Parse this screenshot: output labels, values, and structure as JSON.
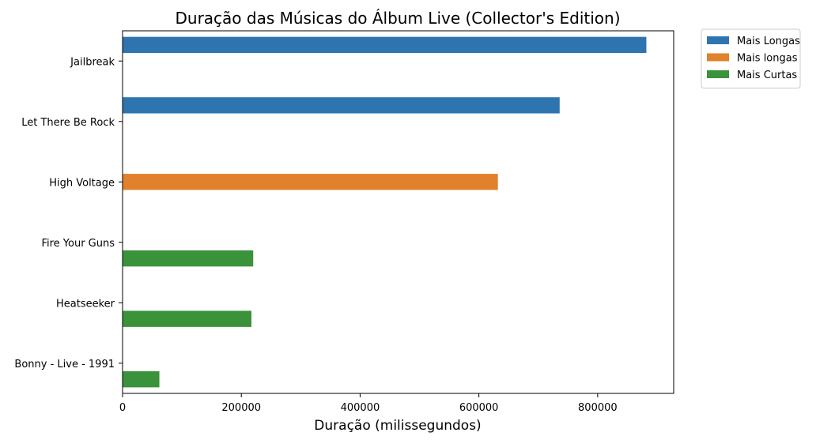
{
  "chart_data": {
    "type": "bar",
    "orientation": "horizontal",
    "title": "Duração das Músicas do Álbum Live (Collector's Edition)",
    "xlabel": "Duração (milissegundos)",
    "ylabel": "",
    "xlim": [
      0,
      928000
    ],
    "xticks": [
      0,
      200000,
      400000,
      600000,
      800000
    ],
    "xtick_labels": [
      "0",
      "200000",
      "400000",
      "600000",
      "800000"
    ],
    "categories": [
      "Jailbreak",
      "Let There Be Rock",
      "High Voltage",
      "Fire Your Guns",
      "Heatseeker",
      "Bonny - Live - 1991"
    ],
    "series": [
      {
        "name": "Mais Longas",
        "color": "#2e75b0",
        "values": [
          882000,
          736000,
          null,
          null,
          null,
          null
        ]
      },
      {
        "name": "Mais longas",
        "color": "#e1812c",
        "values": [
          null,
          null,
          632000,
          null,
          null,
          null
        ]
      },
      {
        "name": "Mais Curtas",
        "color": "#3a923a",
        "values": [
          null,
          null,
          null,
          220000,
          217000,
          62000
        ]
      }
    ],
    "legend_position": "outside-top-right",
    "grid": false
  }
}
